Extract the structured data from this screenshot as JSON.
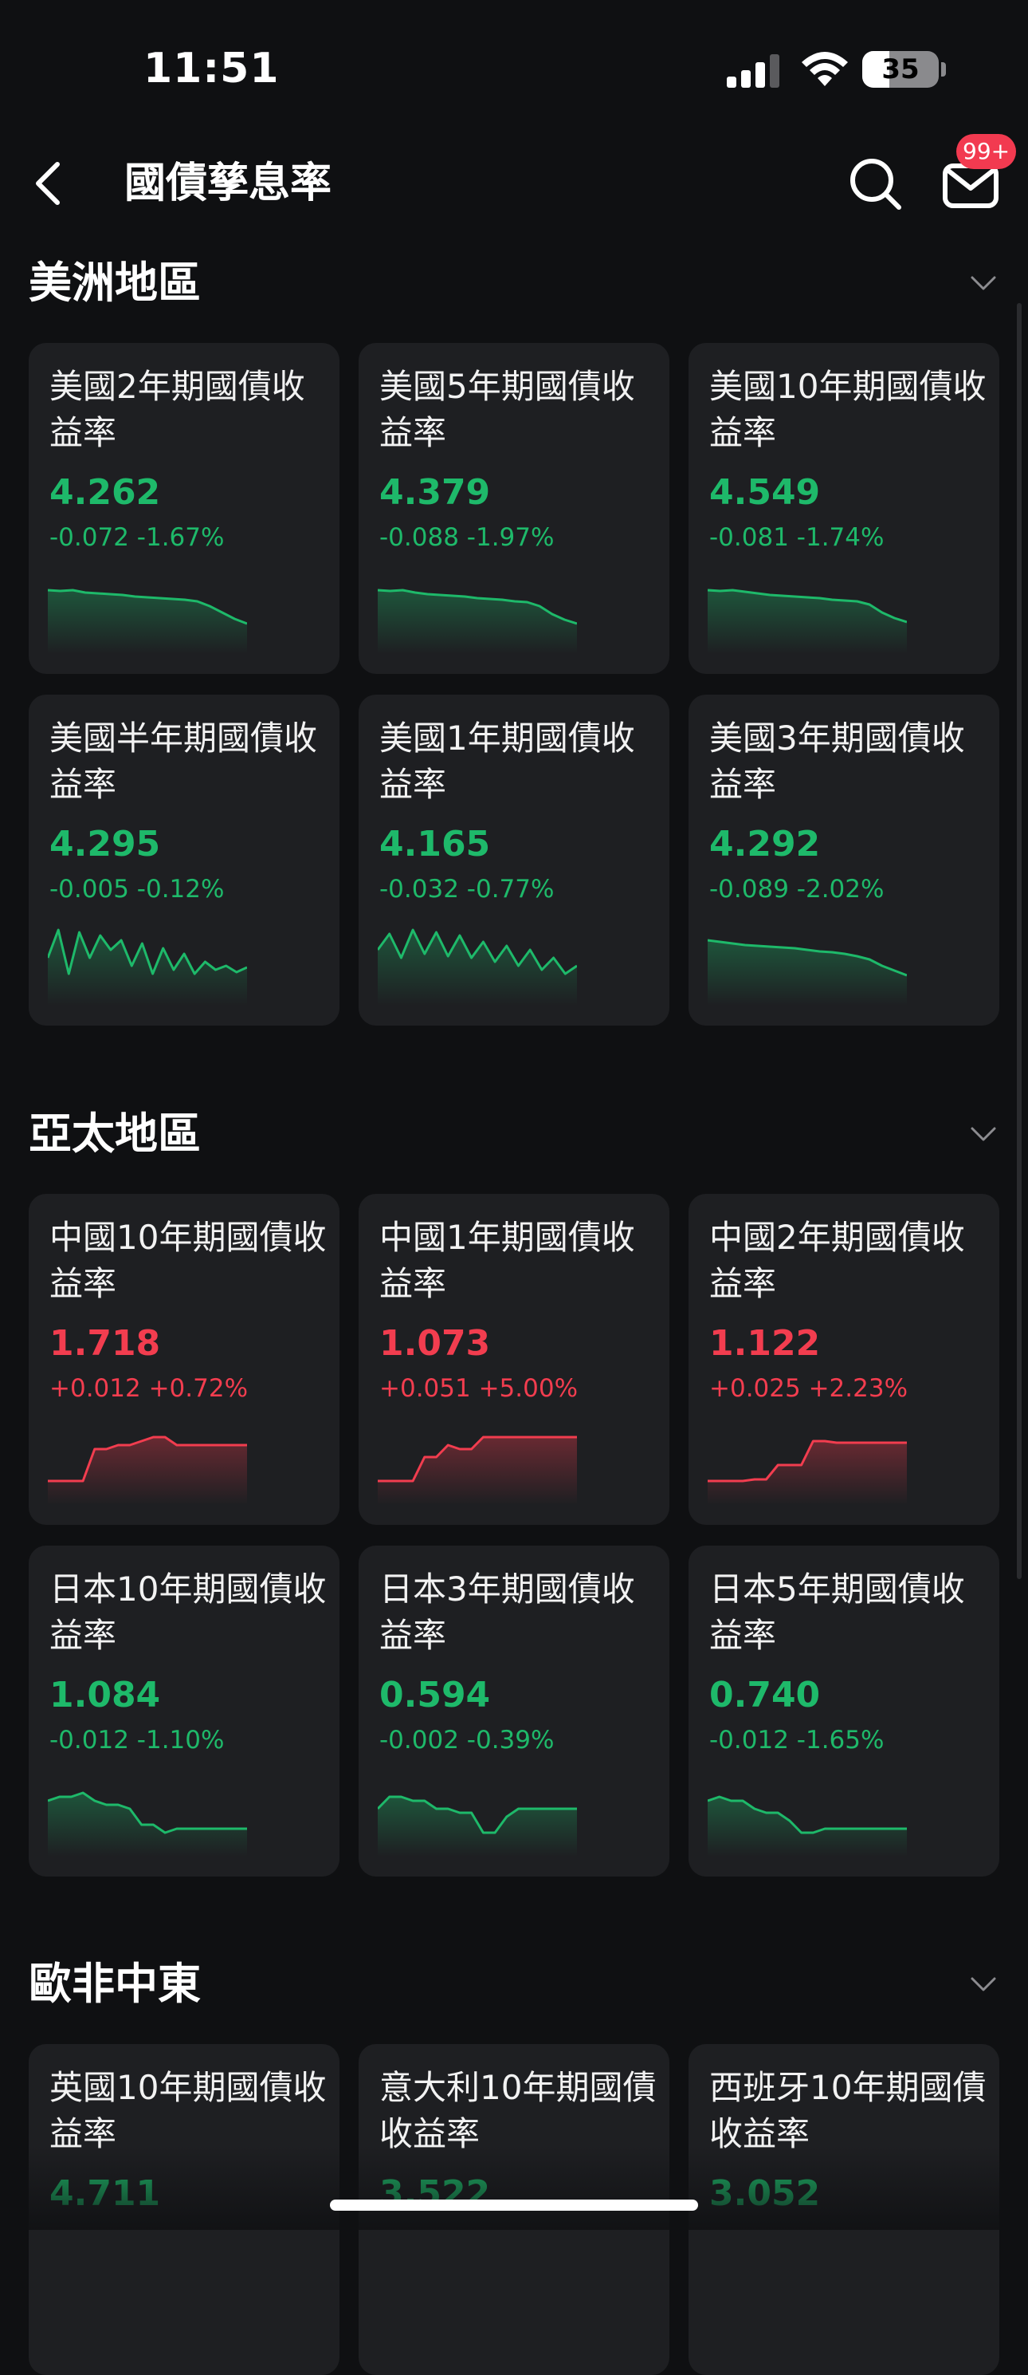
{
  "status_bar": {
    "time": "11:51",
    "battery": "35",
    "battery_level": 0.35
  },
  "nav": {
    "title": "國債孳息率",
    "badge": "99+"
  },
  "colors": {
    "down": "#1eb96a",
    "up": "#f23d4f",
    "card_bg": "#1e1f22",
    "page_bg": "#0f1012"
  },
  "sections": [
    {
      "title": "美洲地區",
      "cards": [
        {
          "name": "美國2年期國債收益率",
          "value": "4.262",
          "change": "-0.072 -1.67%",
          "trend": "down",
          "spark": [
            80,
            79,
            80,
            77,
            76,
            75,
            74,
            72,
            71,
            70,
            69,
            68,
            66,
            60,
            52,
            44,
            38
          ]
        },
        {
          "name": "美國5年期國債收益率",
          "value": "4.379",
          "change": "-0.088 -1.97%",
          "trend": "down",
          "spark": [
            80,
            79,
            80,
            77,
            75,
            74,
            73,
            72,
            70,
            69,
            68,
            66,
            65,
            60,
            50,
            43,
            38
          ]
        },
        {
          "name": "美國10年期國債收益率",
          "value": "4.549",
          "change": "-0.081 -1.74%",
          "trend": "down",
          "spark": [
            80,
            79,
            80,
            78,
            76,
            74,
            73,
            72,
            71,
            70,
            68,
            67,
            66,
            62,
            52,
            45,
            40
          ]
        },
        {
          "name": "美國半年期國債收益率",
          "value": "4.295",
          "change": "-0.005 -0.12%",
          "trend": "down",
          "spark": [
            60,
            95,
            40,
            92,
            60,
            88,
            70,
            82,
            50,
            78,
            40,
            72,
            45,
            65,
            40,
            55,
            45,
            50,
            42,
            48
          ]
        },
        {
          "name": "美國1年期國債收益率",
          "value": "4.165",
          "change": "-0.032 -0.77%",
          "trend": "down",
          "spark": [
            70,
            90,
            60,
            95,
            65,
            92,
            62,
            88,
            60,
            80,
            55,
            75,
            50,
            70,
            45,
            60,
            40,
            50
          ]
        },
        {
          "name": "美國3年期國債收益率",
          "value": "4.292",
          "change": "-0.089 -2.02%",
          "trend": "down",
          "spark": [
            82,
            80,
            78,
            76,
            75,
            74,
            73,
            72,
            70,
            68,
            67,
            65,
            62,
            58,
            50,
            44,
            38
          ]
        }
      ]
    },
    {
      "title": "亞太地區",
      "cards": [
        {
          "name": "中國10年期國債收益率",
          "value": "1.718",
          "change": "+0.012 +0.72%",
          "trend": "up",
          "spark": [
            30,
            30,
            30,
            30,
            70,
            70,
            75,
            75,
            80,
            85,
            85,
            75,
            75,
            75,
            75,
            75,
            75,
            75
          ]
        },
        {
          "name": "中國1年期國債收益率",
          "value": "1.073",
          "change": "+0.051 +5.00%",
          "trend": "up",
          "spark": [
            30,
            30,
            30,
            30,
            60,
            60,
            75,
            70,
            70,
            85,
            85,
            85,
            85,
            85,
            85,
            85,
            85,
            85
          ]
        },
        {
          "name": "中國2年期國債收益率",
          "value": "1.122",
          "change": "+0.025 +2.23%",
          "trend": "up",
          "spark": [
            30,
            30,
            30,
            30,
            32,
            32,
            50,
            50,
            50,
            80,
            80,
            78,
            78,
            78,
            78,
            78,
            78,
            78
          ]
        },
        {
          "name": "日本10年期國債收益率",
          "value": "1.084",
          "change": "-0.012 -1.10%",
          "trend": "down",
          "spark": [
            70,
            75,
            75,
            80,
            70,
            65,
            65,
            60,
            40,
            40,
            30,
            35,
            35,
            35,
            35,
            35,
            35,
            35
          ]
        },
        {
          "name": "日本3年期國債收益率",
          "value": "0.594",
          "change": "-0.002 -0.39%",
          "trend": "down",
          "spark": [
            60,
            75,
            75,
            70,
            70,
            60,
            60,
            55,
            55,
            30,
            30,
            50,
            60,
            60,
            60,
            60,
            60,
            60
          ]
        },
        {
          "name": "日本5年期國債收益率",
          "value": "0.740",
          "change": "-0.012 -1.65%",
          "trend": "down",
          "spark": [
            70,
            75,
            70,
            70,
            60,
            55,
            55,
            45,
            30,
            30,
            35,
            35,
            35,
            35,
            35,
            35,
            35,
            35
          ]
        }
      ]
    },
    {
      "title": "歐非中東",
      "cards": [
        {
          "name": "英國10年期國債收益率",
          "value": "4.711",
          "change": "",
          "trend": "down",
          "spark": []
        },
        {
          "name": "意大利10年期國債收益率",
          "value": "3.522",
          "change": "",
          "trend": "down",
          "spark": []
        },
        {
          "name": "西班牙10年期國債收益率",
          "value": "3.052",
          "change": "",
          "trend": "down",
          "spark": []
        }
      ]
    }
  ]
}
